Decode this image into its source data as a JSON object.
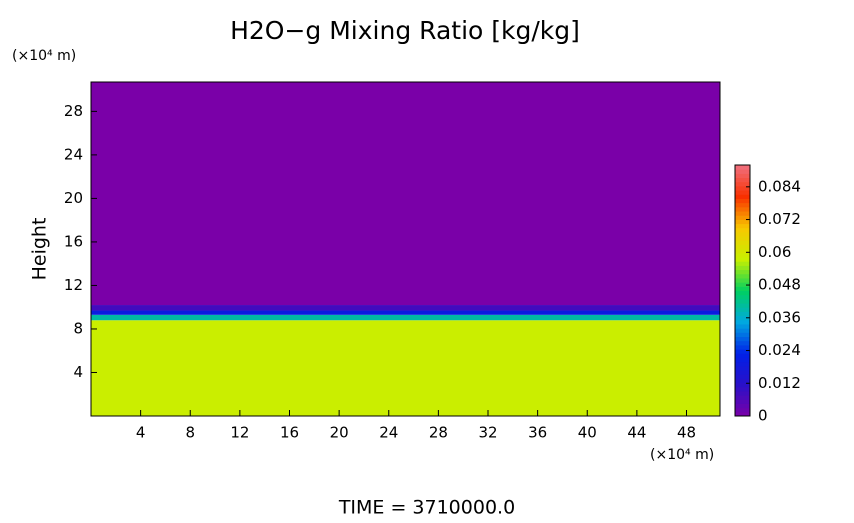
{
  "chart_data": {
    "type": "heatmap",
    "title": "H2O−g Mixing Ratio [kg/kg]",
    "y_unit_label": "(×10⁴ m)",
    "x_unit_label": "(×10⁴ m)",
    "ylabel": "Height",
    "footer": "TIME = 3710000.0",
    "xlim": [
      0,
      50.7
    ],
    "xticks": [
      4,
      8,
      12,
      16,
      20,
      24,
      28,
      32,
      36,
      40,
      44,
      48
    ],
    "ylim": [
      0,
      30.7
    ],
    "yticks": [
      4,
      8,
      12,
      16,
      20,
      24,
      28
    ],
    "y_edges": [
      0,
      8.8,
      9.3,
      9.7,
      10.2,
      30.7
    ],
    "values": [
      0.058,
      0.04,
      0.02,
      0.008,
      0
    ],
    "clim": [
      0,
      0.092
    ],
    "cticks": [
      0,
      0.012,
      0.024,
      0.036,
      0.048,
      0.06,
      0.072,
      0.084
    ],
    "colormap": [
      "#7a00a8",
      "#2a10c8",
      "#0020e8",
      "#00a8e0",
      "#00d060",
      "#c8f000",
      "#f8c800",
      "#f83000",
      "#f07080"
    ]
  }
}
